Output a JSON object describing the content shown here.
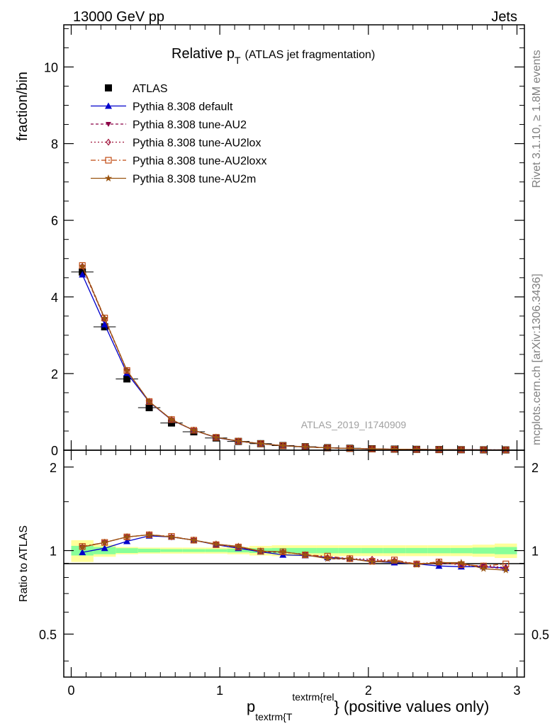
{
  "header": {
    "left": "13000 GeV pp",
    "right": "Jets"
  },
  "side_texts": {
    "rivet": "Rivet 3.1.10, ≥ 1.8M events",
    "mcplots": "mcplots.cern.ch [arXiv:1306.3436]"
  },
  "watermark": "ATLAS_2019_I1740909",
  "colors": {
    "atlas": "#000000",
    "default": "#0000cc",
    "au2": "#8b0045",
    "au2lox": "#a0143c",
    "au2loxx": "#c04a12",
    "au2m": "#9a5410",
    "band_yellow": "#ffff99",
    "band_green": "#88ff99"
  },
  "chart_data": [
    {
      "type": "line",
      "title_main": "Relative p",
      "title_sub": "T",
      "title_rest": "(ATLAS jet fragmentation)",
      "ylabel": "fraction/bin",
      "xlim": [
        -0.05,
        3.05
      ],
      "ylim": [
        0,
        11.1
      ],
      "yticks": [
        0,
        2,
        4,
        6,
        8,
        10
      ],
      "x": [
        0.075,
        0.225,
        0.375,
        0.525,
        0.675,
        0.825,
        0.975,
        1.125,
        1.275,
        1.425,
        1.575,
        1.725,
        1.875,
        2.025,
        2.175,
        2.325,
        2.475,
        2.625,
        2.775,
        2.925
      ],
      "series": [
        {
          "name": "ATLAS",
          "key": "atlas",
          "marker": "square",
          "values": [
            4.65,
            3.22,
            1.86,
            1.11,
            0.71,
            0.48,
            0.32,
            0.23,
            0.17,
            0.12,
            0.09,
            0.065,
            0.05,
            0.037,
            0.028,
            0.022,
            0.017,
            0.013,
            0.01,
            0.008
          ]
        },
        {
          "name": "Pythia 8.308 default",
          "key": "default",
          "marker": "triangle-up",
          "dash": "",
          "values": [
            4.58,
            3.28,
            2.01,
            1.26,
            0.79,
            0.52,
            0.33,
            0.235,
            0.17,
            0.117,
            0.087,
            0.062,
            0.047,
            0.034,
            0.025,
            0.02,
            0.015,
            0.011,
            0.0088,
            0.007
          ]
        },
        {
          "name": "Pythia 8.308 tune-AU2",
          "key": "au2",
          "marker": "triangle-down",
          "dash": "4,3",
          "values": [
            4.78,
            3.42,
            2.07,
            1.27,
            0.79,
            0.52,
            0.335,
            0.237,
            0.17,
            0.119,
            0.088,
            0.061,
            0.047,
            0.034,
            0.026,
            0.0198,
            0.0155,
            0.0116,
            0.0088,
            0.0069
          ]
        },
        {
          "name": "Pythia 8.308 tune-AU2lox",
          "key": "au2lox",
          "marker": "diamond-open",
          "dash": "2,3",
          "values": [
            4.8,
            3.43,
            2.08,
            1.27,
            0.8,
            0.52,
            0.336,
            0.238,
            0.17,
            0.119,
            0.087,
            0.062,
            0.047,
            0.034,
            0.026,
            0.0198,
            0.0156,
            0.0117,
            0.0088,
            0.007
          ]
        },
        {
          "name": "Pythia 8.308 tune-AU2loxx",
          "key": "au2loxx",
          "marker": "square-open",
          "dash": "7,3,2,3",
          "values": [
            4.82,
            3.45,
            2.08,
            1.27,
            0.8,
            0.52,
            0.335,
            0.236,
            0.17,
            0.119,
            0.087,
            0.062,
            0.047,
            0.034,
            0.026,
            0.0198,
            0.0155,
            0.0116,
            0.0088,
            0.0072
          ]
        },
        {
          "name": "Pythia 8.308 tune-AU2m",
          "key": "au2m",
          "marker": "star",
          "dash": "",
          "values": [
            4.8,
            3.44,
            2.08,
            1.27,
            0.8,
            0.52,
            0.335,
            0.237,
            0.17,
            0.119,
            0.087,
            0.061,
            0.047,
            0.034,
            0.026,
            0.0198,
            0.0155,
            0.0118,
            0.0086,
            0.0068
          ]
        }
      ]
    },
    {
      "type": "line",
      "ylabel": "Ratio to ATLAS",
      "xlabel_main": "p",
      "xlabel_sub": "textrm{T",
      "xlabel_sup": "textrm{rel",
      "xlabel_rest": "} (positive values only)",
      "xlim": [
        -0.05,
        3.05
      ],
      "ylim": [
        0.35,
        2.3
      ],
      "yticks": [
        0.5,
        1,
        2
      ],
      "ytick_labels": [
        "0.5",
        "1",
        "2"
      ],
      "xticks": [
        0,
        1,
        2,
        3
      ],
      "xtick_labels": [
        "0",
        "1",
        "2",
        "3"
      ],
      "x": [
        0.075,
        0.225,
        0.375,
        0.525,
        0.675,
        0.825,
        0.975,
        1.125,
        1.275,
        1.425,
        1.575,
        1.725,
        1.875,
        2.025,
        2.175,
        2.325,
        2.475,
        2.625,
        2.775,
        2.925
      ],
      "band_inner": [
        0.04,
        0.03,
        0.02,
        0.015,
        0.012,
        0.012,
        0.012,
        0.015,
        0.02,
        0.022,
        0.022,
        0.022,
        0.022,
        0.022,
        0.022,
        0.022,
        0.022,
        0.022,
        0.025,
        0.03
      ],
      "band_outer": [
        0.09,
        0.05,
        0.03,
        0.025,
        0.025,
        0.025,
        0.025,
        0.03,
        0.04,
        0.045,
        0.045,
        0.045,
        0.045,
        0.045,
        0.045,
        0.045,
        0.045,
        0.045,
        0.05,
        0.06
      ],
      "series": [
        {
          "name": "Pythia 8.308 default",
          "key": "default",
          "marker": "triangle-up",
          "dash": "",
          "values": [
            0.985,
            1.02,
            1.08,
            1.13,
            1.12,
            1.09,
            1.05,
            1.02,
            0.99,
            0.965,
            0.96,
            0.945,
            0.935,
            0.915,
            0.905,
            0.895,
            0.88,
            0.875,
            0.875,
            0.865
          ]
        },
        {
          "name": "Pythia 8.308 tune-AU2",
          "key": "au2",
          "marker": "triangle-down",
          "dash": "4,3",
          "values": [
            1.03,
            1.07,
            1.12,
            1.14,
            1.12,
            1.09,
            1.055,
            1.03,
            0.99,
            0.985,
            0.97,
            0.935,
            0.93,
            0.92,
            0.915,
            0.895,
            0.9,
            0.895,
            0.875,
            0.86
          ]
        },
        {
          "name": "Pythia 8.308 tune-AU2lox",
          "key": "au2lox",
          "marker": "diamond-open",
          "dash": "2,3",
          "values": [
            1.03,
            1.07,
            1.12,
            1.14,
            1.12,
            1.09,
            1.055,
            1.035,
            0.995,
            0.99,
            0.965,
            0.945,
            0.935,
            0.93,
            0.92,
            0.895,
            0.91,
            0.885,
            0.88,
            0.87
          ]
        },
        {
          "name": "Pythia 8.308 tune-AU2loxx",
          "key": "au2loxx",
          "marker": "square-open",
          "dash": "7,3,2,3",
          "values": [
            1.035,
            1.07,
            1.12,
            1.14,
            1.125,
            1.09,
            1.05,
            1.03,
            0.995,
            0.99,
            0.965,
            0.955,
            0.935,
            0.915,
            0.925,
            0.895,
            0.91,
            0.89,
            0.88,
            0.895
          ]
        },
        {
          "name": "Pythia 8.308 tune-AU2m",
          "key": "au2m",
          "marker": "star",
          "dash": "",
          "values": [
            1.03,
            1.07,
            1.12,
            1.14,
            1.12,
            1.09,
            1.055,
            1.035,
            0.995,
            0.99,
            0.965,
            0.935,
            0.935,
            0.91,
            0.915,
            0.89,
            0.905,
            0.905,
            0.86,
            0.85
          ]
        }
      ]
    }
  ]
}
